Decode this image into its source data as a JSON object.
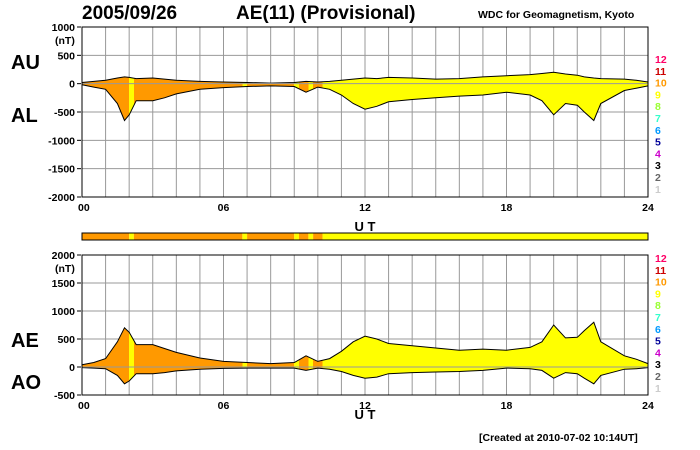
{
  "header": {
    "date": "2005/09/26",
    "title": "AE(11) (Provisional)",
    "source": "WDC for Geomagnetism, Kyoto",
    "created": "[Created at 2010-07-02 10:14UT]"
  },
  "colors": {
    "orange": "#ff9900",
    "yellow": "#ffff00",
    "outline": "#000000",
    "grid": "#999999"
  },
  "legend": {
    "items": [
      {
        "label": "12",
        "color": "#ff0066"
      },
      {
        "label": "11",
        "color": "#cc0000"
      },
      {
        "label": "10",
        "color": "#ff9900"
      },
      {
        "label": "9",
        "color": "#ffff00"
      },
      {
        "label": "8",
        "color": "#99ff33"
      },
      {
        "label": "7",
        "color": "#33ffcc"
      },
      {
        "label": "6",
        "color": "#0099ff"
      },
      {
        "label": "5",
        "color": "#000099"
      },
      {
        "label": "4",
        "color": "#cc00cc"
      },
      {
        "label": "3",
        "color": "#000000"
      },
      {
        "label": "2",
        "color": "#666666"
      },
      {
        "label": "1",
        "color": "#cccccc"
      }
    ]
  },
  "chart_data": [
    {
      "type": "area",
      "panel": "AU/AL",
      "series_labels": [
        "AU",
        "AL"
      ],
      "y_unit": "(nT)",
      "xlabel": "U T",
      "xlim": [
        0,
        24
      ],
      "ylim": [
        -2000,
        1000
      ],
      "x_ticks": [
        "00",
        "06",
        "12",
        "18",
        "24"
      ],
      "y_ticks": [
        1000,
        500,
        0,
        -500,
        -1000,
        -1500,
        -2000
      ],
      "grid": true,
      "x_hours": [
        0,
        0.5,
        1,
        1.5,
        1.8,
        2,
        2.3,
        3,
        3.5,
        4,
        5,
        6,
        7,
        8,
        9,
        9.5,
        10,
        10.5,
        11,
        11.5,
        12,
        12.5,
        13,
        14,
        15,
        16,
        17,
        18,
        19,
        19.5,
        20,
        20.5,
        21,
        21.3,
        21.7,
        22,
        23,
        23.5,
        24
      ],
      "au": [
        20,
        40,
        60,
        100,
        120,
        110,
        90,
        100,
        80,
        60,
        40,
        30,
        20,
        10,
        20,
        40,
        30,
        40,
        60,
        80,
        100,
        90,
        110,
        100,
        80,
        90,
        120,
        140,
        160,
        180,
        200,
        170,
        150,
        120,
        100,
        90,
        80,
        60,
        30
      ],
      "al": [
        -20,
        -60,
        -100,
        -350,
        -650,
        -550,
        -300,
        -300,
        -250,
        -180,
        -100,
        -70,
        -50,
        -40,
        -50,
        -150,
        -60,
        -100,
        -200,
        -350,
        -450,
        -400,
        -320,
        -280,
        -250,
        -220,
        -200,
        -150,
        -200,
        -300,
        -550,
        -350,
        -380,
        -500,
        -650,
        -350,
        -120,
        -80,
        -40
      ],
      "activity_segments": [
        {
          "from": 0,
          "to": 2.0,
          "level": "10"
        },
        {
          "from": 2.0,
          "to": 2.2,
          "level": "9"
        },
        {
          "from": 2.2,
          "to": 6.8,
          "level": "10"
        },
        {
          "from": 6.8,
          "to": 7.0,
          "level": "9"
        },
        {
          "from": 7.0,
          "to": 9.0,
          "level": "10"
        },
        {
          "from": 9.0,
          "to": 9.2,
          "level": "9"
        },
        {
          "from": 9.2,
          "to": 9.6,
          "level": "10"
        },
        {
          "from": 9.6,
          "to": 9.8,
          "level": "9"
        },
        {
          "from": 9.8,
          "to": 10.2,
          "level": "10"
        },
        {
          "from": 10.2,
          "to": 24,
          "level": "9"
        }
      ]
    },
    {
      "type": "area",
      "panel": "AE/AO",
      "series_labels": [
        "AE",
        "AO"
      ],
      "y_unit": "(nT)",
      "xlabel": "U T",
      "xlim": [
        0,
        24
      ],
      "ylim": [
        -500,
        2000
      ],
      "x_ticks": [
        "00",
        "06",
        "12",
        "18",
        "24"
      ],
      "y_ticks": [
        2000,
        1500,
        1000,
        500,
        0,
        -500
      ],
      "grid": true,
      "x_hours": [
        0,
        0.5,
        1,
        1.5,
        1.8,
        2,
        2.3,
        3,
        3.5,
        4,
        5,
        6,
        7,
        8,
        9,
        9.5,
        10,
        10.5,
        11,
        11.5,
        12,
        12.5,
        13,
        14,
        15,
        16,
        17,
        18,
        19,
        19.5,
        20,
        20.5,
        21,
        21.3,
        21.7,
        22,
        23,
        23.5,
        24
      ],
      "ae": [
        40,
        80,
        150,
        450,
        700,
        620,
        400,
        400,
        330,
        260,
        160,
        100,
        80,
        60,
        80,
        200,
        100,
        150,
        280,
        450,
        550,
        500,
        420,
        380,
        340,
        300,
        320,
        300,
        350,
        450,
        750,
        520,
        530,
        650,
        800,
        450,
        200,
        140,
        60
      ],
      "ao": [
        -10,
        -20,
        -30,
        -150,
        -300,
        -250,
        -120,
        -120,
        -100,
        -70,
        -40,
        -25,
        -20,
        -20,
        -20,
        -60,
        -20,
        -40,
        -80,
        -150,
        -200,
        -180,
        -120,
        -100,
        -90,
        -80,
        -60,
        -20,
        -30,
        -60,
        -200,
        -100,
        -120,
        -200,
        -300,
        -150,
        -40,
        -30,
        -10
      ],
      "activity_segments": [
        {
          "from": 0,
          "to": 2.0,
          "level": "10"
        },
        {
          "from": 2.0,
          "to": 2.2,
          "level": "9"
        },
        {
          "from": 2.2,
          "to": 6.8,
          "level": "10"
        },
        {
          "from": 6.8,
          "to": 7.0,
          "level": "9"
        },
        {
          "from": 7.0,
          "to": 9.0,
          "level": "10"
        },
        {
          "from": 9.0,
          "to": 9.2,
          "level": "9"
        },
        {
          "from": 9.2,
          "to": 9.6,
          "level": "10"
        },
        {
          "from": 9.6,
          "to": 9.8,
          "level": "9"
        },
        {
          "from": 9.8,
          "to": 10.2,
          "level": "10"
        },
        {
          "from": 10.2,
          "to": 24,
          "level": "9"
        }
      ]
    }
  ]
}
